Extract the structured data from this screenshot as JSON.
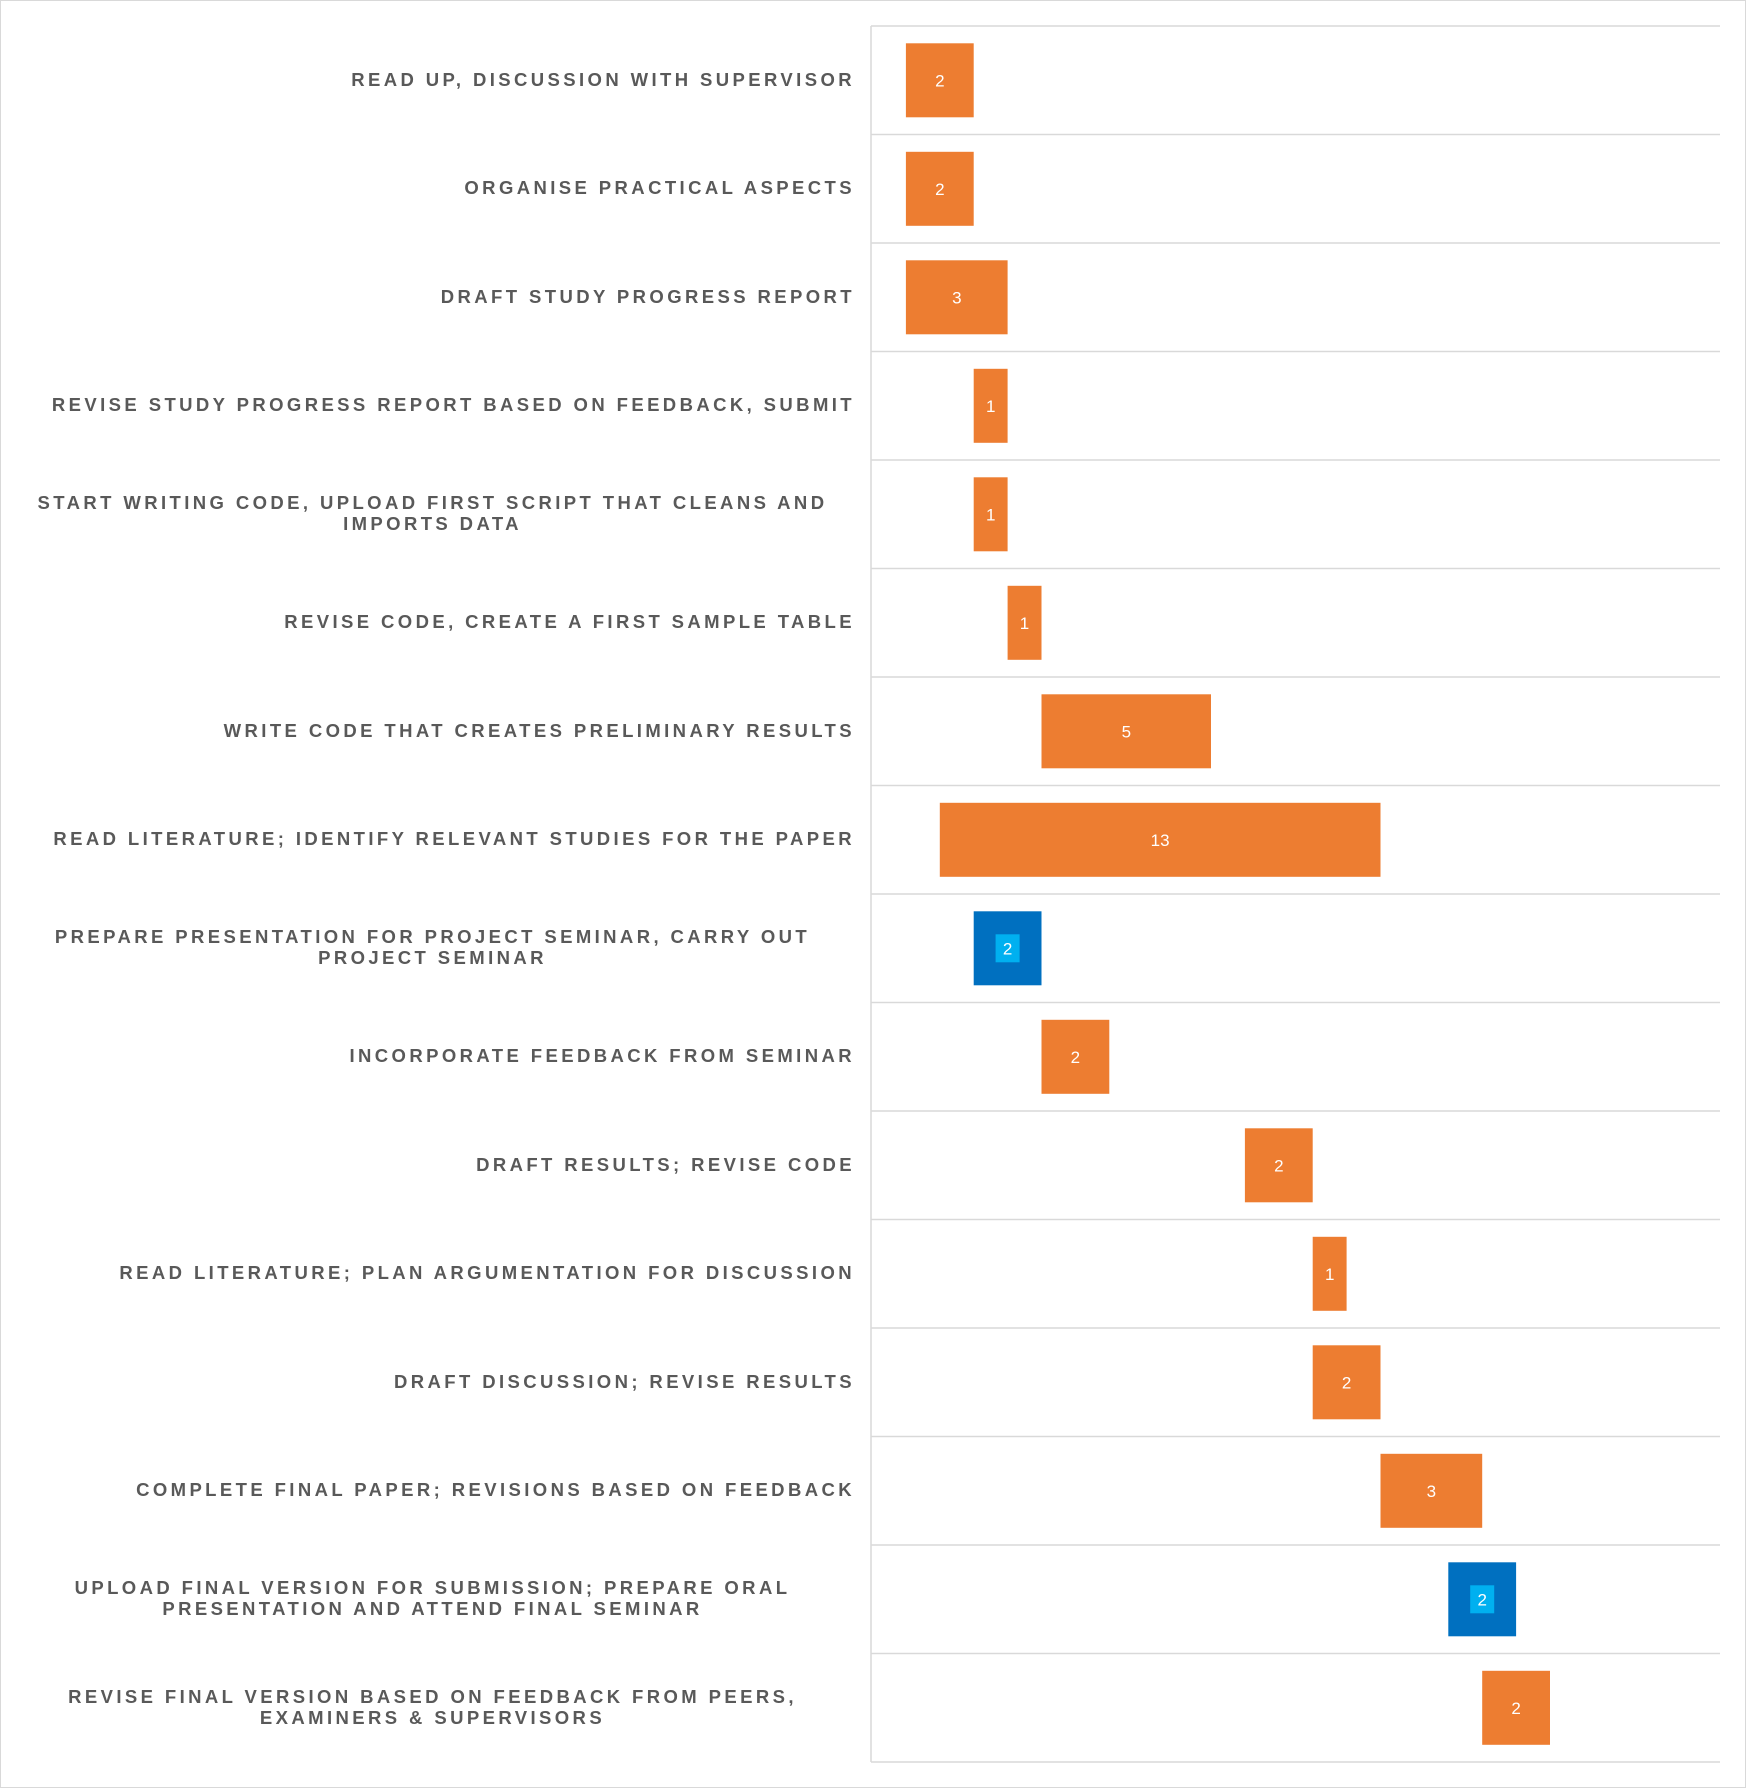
{
  "chart_data": {
    "type": "bar",
    "orientation": "horizontal",
    "subtype": "gantt",
    "title": "",
    "xlabel": "",
    "ylabel": "",
    "x_axis_visible": false,
    "xlim": [
      0,
      25
    ],
    "grid": "horizontal row separators",
    "legend": "none",
    "colors": {
      "task": "#ED7D31",
      "milestone": "#0070C0",
      "milestone_label_bg": "#00B0F0",
      "label_text": "#595959",
      "gridline": "#d9d9d9"
    },
    "series": [
      {
        "name": "",
        "values": []
      }
    ],
    "tasks": [
      {
        "label": "READ UP, DISCUSSION WITH SUPERVISOR",
        "start": 1,
        "duration": 2,
        "kind": "task"
      },
      {
        "label": "ORGANISE PRACTICAL ASPECTS",
        "start": 1,
        "duration": 2,
        "kind": "task"
      },
      {
        "label": "DRAFT STUDY PROGRESS REPORT",
        "start": 1,
        "duration": 3,
        "kind": "task"
      },
      {
        "label": "REVISE STUDY PROGRESS REPORT BASED ON FEEDBACK, SUBMIT",
        "start": 3,
        "duration": 1,
        "kind": "task"
      },
      {
        "label": "START WRITING CODE, UPLOAD FIRST SCRIPT THAT CLEANS AND IMPORTS DATA",
        "start": 3,
        "duration": 1,
        "kind": "task"
      },
      {
        "label": "REVISE CODE, CREATE A FIRST SAMPLE TABLE",
        "start": 4,
        "duration": 1,
        "kind": "task"
      },
      {
        "label": "WRITE CODE THAT CREATES PRELIMINARY RESULTS",
        "start": 5,
        "duration": 5,
        "kind": "task"
      },
      {
        "label": "READ LITERATURE; IDENTIFY RELEVANT STUDIES FOR THE PAPER",
        "start": 2,
        "duration": 13,
        "kind": "task"
      },
      {
        "label": "PREPARE PRESENTATION FOR PROJECT SEMINAR, CARRY OUT PROJECT SEMINAR",
        "start": 3,
        "duration": 2,
        "kind": "milestone"
      },
      {
        "label": "INCORPORATE FEEDBACK FROM SEMINAR",
        "start": 5,
        "duration": 2,
        "kind": "task"
      },
      {
        "label": "DRAFT RESULTS; REVISE CODE",
        "start": 11,
        "duration": 2,
        "kind": "task"
      },
      {
        "label": "READ LITERATURE; PLAN ARGUMENTATION FOR DISCUSSION",
        "start": 13,
        "duration": 1,
        "kind": "task"
      },
      {
        "label": "DRAFT DISCUSSION; REVISE RESULTS",
        "start": 13,
        "duration": 2,
        "kind": "task"
      },
      {
        "label": "COMPLETE FINAL PAPER; REVISIONS BASED ON FEEDBACK",
        "start": 15,
        "duration": 3,
        "kind": "task"
      },
      {
        "label": "UPLOAD FINAL VERSION FOR SUBMISSION; PREPARE ORAL PRESENTATION AND ATTEND FINAL SEMINAR",
        "start": 17,
        "duration": 2,
        "kind": "milestone"
      },
      {
        "label": "REVISE FINAL VERSION BASED ON FEEDBACK FROM PEERS, EXAMINERS & SUPERVISORS",
        "start": 18,
        "duration": 2,
        "kind": "task"
      }
    ]
  }
}
